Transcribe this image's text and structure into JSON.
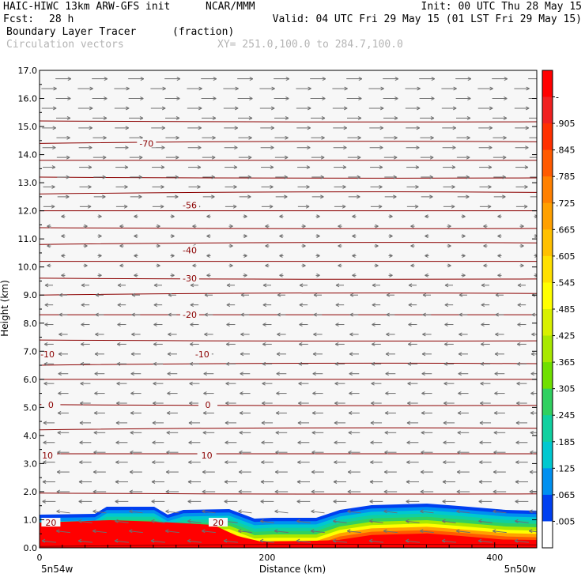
{
  "header": {
    "model": "HAIC-HIWC 13km ARW-GFS init",
    "org": "NCAR/MMM",
    "init": "Init: 00 UTC Thu 28 May 15",
    "fcst_label": "Fcst:",
    "fcst_value": "28 h",
    "valid": "Valid: 04 UTC Fri 29 May 15 (01 LST Fri 29 May 15)",
    "field": "Boundary Layer Tracer",
    "field_units": "(fraction)",
    "vectors": "Circulation vectors",
    "xy": "XY= 251.0,100.0 to 284.7,100.0"
  },
  "chart_data": {
    "type": "heatmap",
    "xlabel": "Distance (km)",
    "ylabel": "Height (km)",
    "xlim": [
      0,
      437
    ],
    "ylim": [
      0,
      17
    ],
    "xticks": [
      0,
      200,
      400
    ],
    "yticks": [
      "0.0",
      "1.0",
      "2.0",
      "3.0",
      "4.0",
      "5.0",
      "6.0",
      "7.0",
      "8.0",
      "9.0",
      "10.0",
      "11.0",
      "12.0",
      "13.0",
      "14.0",
      "15.0",
      "16.0",
      "17.0"
    ],
    "x_endpoint_labels": [
      "5n54w",
      "5n50w"
    ],
    "colorbar": {
      "labels": [
        "-",
        ".905",
        ".845",
        ".785",
        ".725",
        ".665",
        ".605",
        ".545",
        ".485",
        ".425",
        ".365",
        ".305",
        ".245",
        ".185",
        ".125",
        ".065",
        ".005"
      ],
      "colors": [
        "#ff0000",
        "#f02020",
        "#ff3000",
        "#ff5a00",
        "#ff8000",
        "#ffa000",
        "#ffc000",
        "#ffe000",
        "#ffff00",
        "#d8f000",
        "#a8e800",
        "#70e000",
        "#30d060",
        "#10d0a0",
        "#00c8d0",
        "#0090f0",
        "#0040f0",
        "#ffffff"
      ]
    },
    "contour_labels": [
      {
        "label": "-70",
        "x": 94,
        "y": 14.4
      },
      {
        "label": "-56",
        "x": 132,
        "y": 12.2
      },
      {
        "label": "-40",
        "x": 132,
        "y": 10.6
      },
      {
        "label": "-30",
        "x": 132,
        "y": 9.6
      },
      {
        "label": "-20",
        "x": 132,
        "y": 8.3
      },
      {
        "label": "-10",
        "x": 7,
        "y": 6.9
      },
      {
        "label": "-10",
        "x": 143,
        "y": 6.9
      },
      {
        "label": "0",
        "x": 10,
        "y": 5.1
      },
      {
        "label": "0",
        "x": 148,
        "y": 5.1
      },
      {
        "label": "10",
        "x": 7,
        "y": 3.3
      },
      {
        "label": "10",
        "x": 147,
        "y": 3.3
      },
      {
        "label": "20",
        "x": 10,
        "y": 0.9
      },
      {
        "label": "20",
        "x": 157,
        "y": 0.9
      }
    ],
    "contour_levels_km": [
      0.05,
      1.95,
      3.35,
      4.2,
      5.1,
      6.0,
      6.5,
      7.4,
      8.3,
      9.0,
      9.6,
      10.2,
      10.8,
      11.4,
      12.0,
      12.6,
      13.2,
      13.8,
      14.4,
      15.2
    ]
  }
}
